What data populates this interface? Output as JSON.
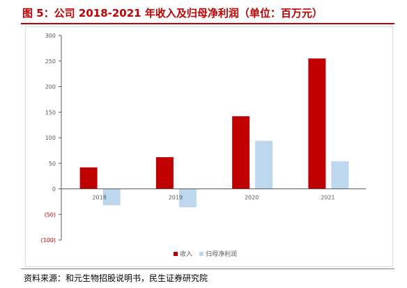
{
  "title": "图 5：公司 2018-2021 年收入及归母净利润（单位：百万元）",
  "source": "资料来源：和元生物招股说明书，民生证券研究院",
  "chart_data": {
    "type": "bar",
    "categories": [
      "2018",
      "2019",
      "2020",
      "2021"
    ],
    "series": [
      {
        "name": "收入",
        "color": "#c00000",
        "values": [
          42,
          62,
          142,
          255
        ]
      },
      {
        "name": "归母净利润",
        "color": "#bdd7ee",
        "values": [
          -32,
          -36,
          94,
          54
        ]
      }
    ],
    "ylim": [
      -100,
      300
    ],
    "yticks": [
      {
        "value": 300,
        "label": "300"
      },
      {
        "value": 250,
        "label": "250"
      },
      {
        "value": 200,
        "label": "200"
      },
      {
        "value": 150,
        "label": "150"
      },
      {
        "value": 100,
        "label": "100"
      },
      {
        "value": 50,
        "label": "50"
      },
      {
        "value": 0,
        "label": "0"
      },
      {
        "value": -50,
        "label": "(50)"
      },
      {
        "value": -100,
        "label": "(100)"
      }
    ],
    "negative_tick_color": "#c00000",
    "legend_position": "bottom-center",
    "grid": false
  }
}
